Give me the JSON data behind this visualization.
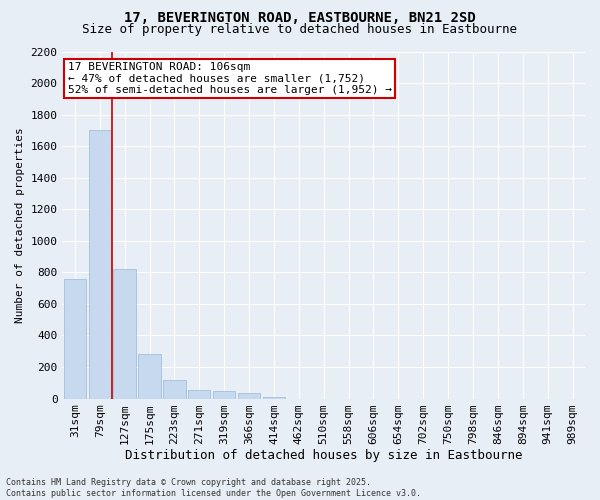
{
  "title": "17, BEVERINGTON ROAD, EASTBOURNE, BN21 2SD",
  "subtitle": "Size of property relative to detached houses in Eastbourne",
  "xlabel": "Distribution of detached houses by size in Eastbourne",
  "ylabel": "Number of detached properties",
  "categories": [
    "31sqm",
    "79sqm",
    "127sqm",
    "175sqm",
    "223sqm",
    "271sqm",
    "319sqm",
    "366sqm",
    "414sqm",
    "462sqm",
    "510sqm",
    "558sqm",
    "606sqm",
    "654sqm",
    "702sqm",
    "750sqm",
    "798sqm",
    "846sqm",
    "894sqm",
    "941sqm",
    "989sqm"
  ],
  "values": [
    760,
    1700,
    820,
    280,
    120,
    55,
    45,
    35,
    10,
    0,
    0,
    0,
    0,
    0,
    0,
    0,
    0,
    0,
    0,
    0,
    0
  ],
  "bar_color": "#c6d9ef",
  "bar_edge_color": "#9ab8d8",
  "annotation_line1": "17 BEVERINGTON ROAD: 106sqm",
  "annotation_line2": "← 47% of detached houses are smaller (1,752)",
  "annotation_line3": "52% of semi-detached houses are larger (1,952) →",
  "annotation_box_color": "#cc0000",
  "vline_color": "#cc0000",
  "vline_x": 1.5,
  "ylim": [
    0,
    2200
  ],
  "yticks": [
    0,
    200,
    400,
    600,
    800,
    1000,
    1200,
    1400,
    1600,
    1800,
    2000,
    2200
  ],
  "footer_line1": "Contains HM Land Registry data © Crown copyright and database right 2025.",
  "footer_line2": "Contains public sector information licensed under the Open Government Licence v3.0.",
  "bg_color": "#e8eef5",
  "plot_bg_color": "#e8eef5",
  "grid_color": "#ffffff",
  "title_fontsize": 10,
  "subtitle_fontsize": 9,
  "xlabel_fontsize": 9,
  "ylabel_fontsize": 8,
  "tick_fontsize": 8,
  "annot_fontsize": 8,
  "footer_fontsize": 6
}
